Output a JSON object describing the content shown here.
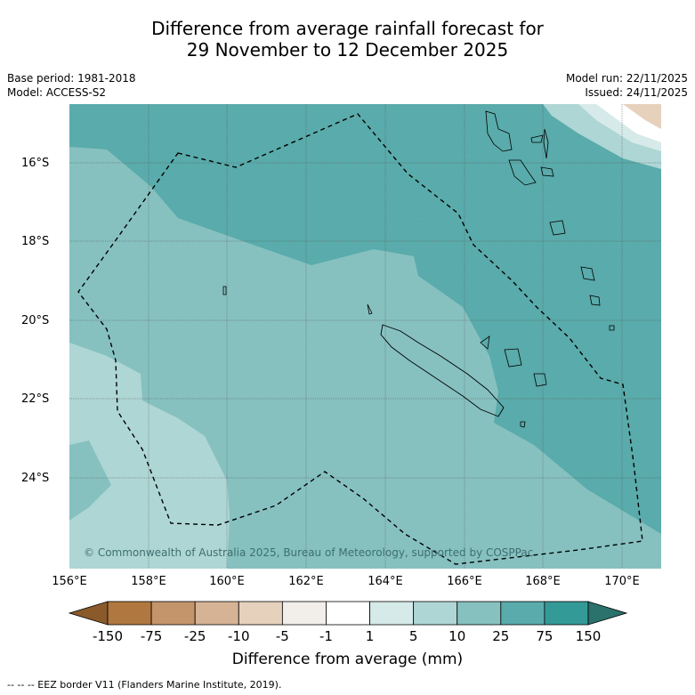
{
  "title_line1": "Difference from average rainfall forecast for",
  "title_line2": "29 November to 12 December 2025",
  "base_period": "Base period: 1981-2018",
  "model": "Model: ACCESS-S2",
  "model_run": "Model run: 22/11/2025",
  "issued": "Issued: 24/11/2025",
  "copyright": "© Commonwealth of Australia 2025, Bureau of Meteorology, supported by COSPPac",
  "lat_labels": [
    "16°S",
    "18°S",
    "20°S",
    "22°S",
    "24°S"
  ],
  "lon_labels": [
    "156°E",
    "158°E",
    "160°E",
    "162°E",
    "164°E",
    "166°E",
    "168°E",
    "170°E"
  ],
  "colorbar": {
    "title": "Difference from average (mm)",
    "ticks": [
      "-150",
      "-75",
      "-25",
      "-10",
      "-5",
      "-1",
      "1",
      "5",
      "10",
      "25",
      "75",
      "150"
    ],
    "colors": [
      "#8a5a2b",
      "#b07840",
      "#c4956a",
      "#d5b394",
      "#e6d1bd",
      "#f2efeb",
      "#ffffff",
      "#d6ebe9",
      "#aed6d5",
      "#86c1c0",
      "#5aabab",
      "#349a97",
      "#2b716c"
    ]
  },
  "footer": "-- -- -- EEZ border V11 (Flanders Marine Institute, 2019)."
}
